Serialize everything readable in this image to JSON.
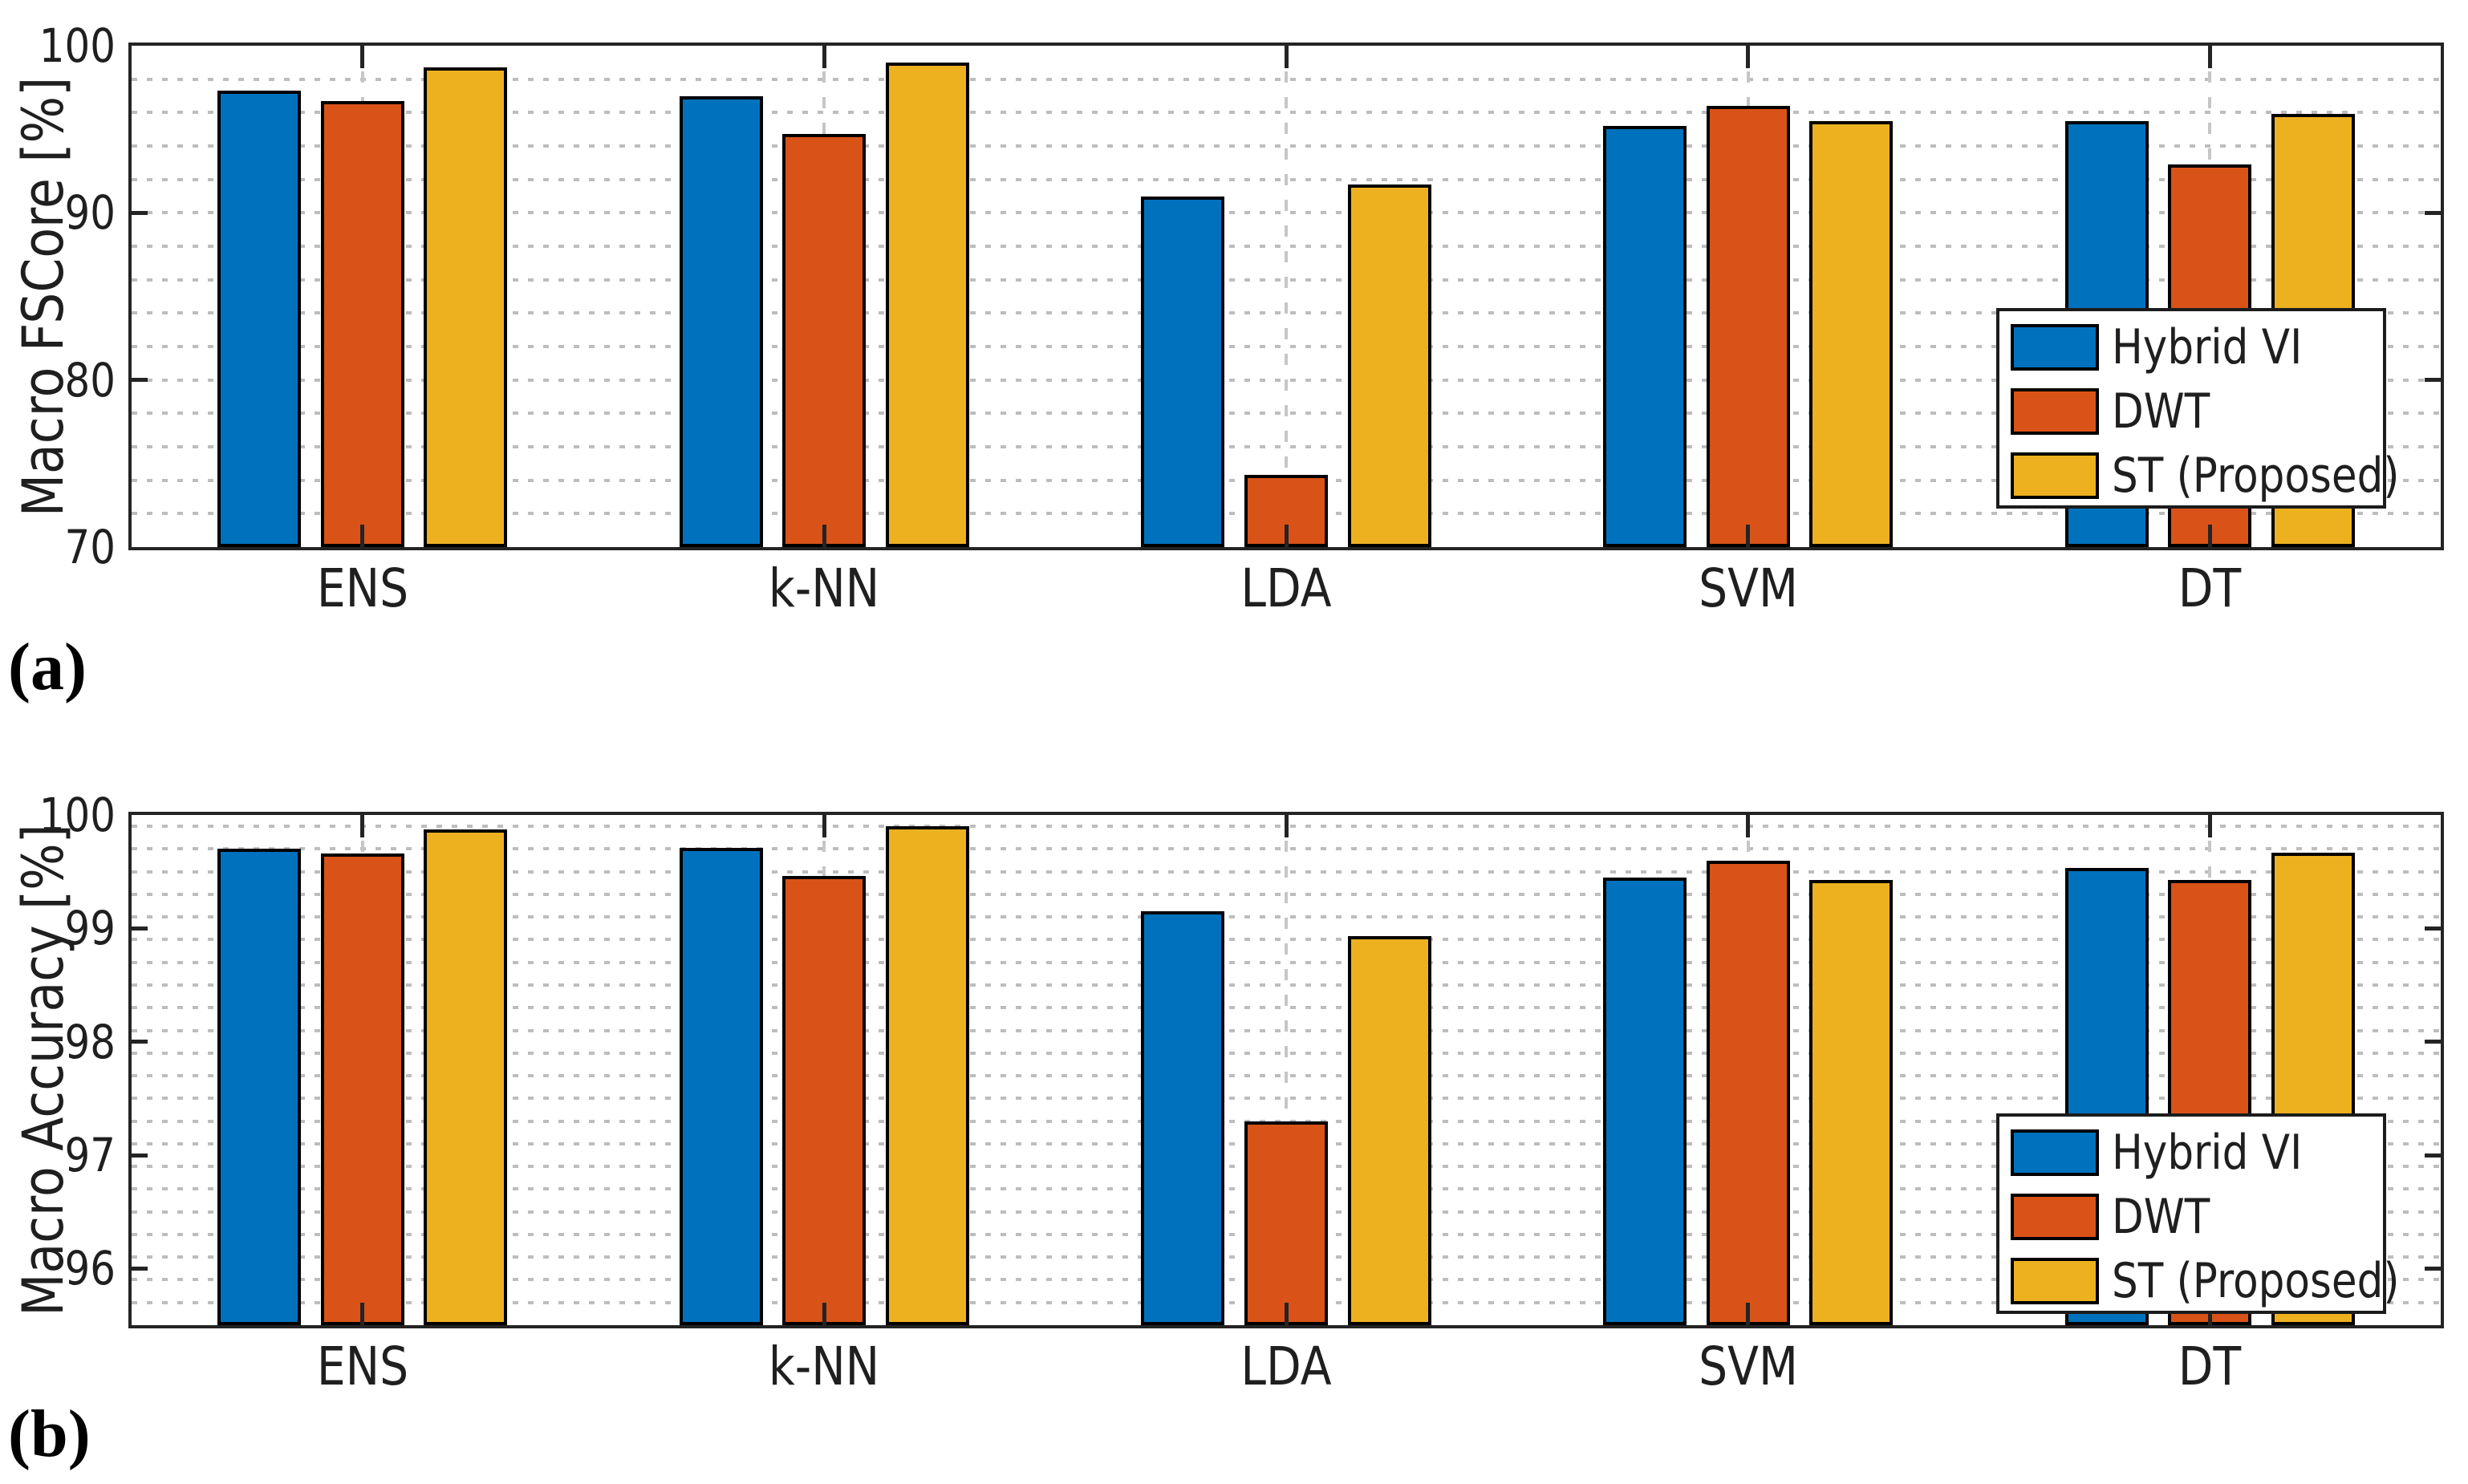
{
  "chart_data": [
    {
      "id": "a",
      "type": "bar",
      "panel_label": "(a)",
      "ylabel": "Macro FSCore [%]",
      "categories": [
        "ENS",
        "k-NN",
        "LDA",
        "SVM",
        "DT"
      ],
      "series": [
        {
          "name": "Hybrid VI",
          "color": "#0072BD",
          "values": [
            97.3,
            97.0,
            91.0,
            95.2,
            95.5
          ]
        },
        {
          "name": "DWT",
          "color": "#D95319",
          "values": [
            96.7,
            94.7,
            74.3,
            96.4,
            92.9
          ]
        },
        {
          "name": "ST (Proposed)",
          "color": "#EDB120",
          "values": [
            98.7,
            99.0,
            91.7,
            95.5,
            95.9
          ]
        }
      ],
      "ylim": [
        70,
        100
      ],
      "yticks": [
        70,
        80,
        90,
        100
      ],
      "minor_step": 2,
      "grid": "minor-dotted-horizontal, dashed-vertical-at-categories",
      "legend_position": "right-middle-inside",
      "legend_entries": [
        "Hybrid VI",
        "DWT",
        "ST (Proposed)"
      ]
    },
    {
      "id": "b",
      "type": "bar",
      "panel_label": "(b)",
      "ylabel": "Macro Accuracy [%]",
      "categories": [
        "ENS",
        "k-NN",
        "LDA",
        "SVM",
        "DT"
      ],
      "series": [
        {
          "name": "Hybrid VI",
          "color": "#0072BD",
          "values": [
            99.7,
            99.71,
            99.15,
            99.45,
            99.53
          ]
        },
        {
          "name": "DWT",
          "color": "#D95319",
          "values": [
            99.66,
            99.46,
            97.3,
            99.6,
            99.43
          ]
        },
        {
          "name": "ST (Proposed)",
          "color": "#EDB120",
          "values": [
            99.87,
            99.9,
            98.93,
            99.43,
            99.67
          ]
        }
      ],
      "ylim": [
        95.5,
        100
      ],
      "yticks": [
        96,
        97,
        98,
        99,
        100
      ],
      "minor_step": 0.2,
      "grid": "minor-dotted-horizontal, dashed-vertical-at-categories",
      "legend_position": "right-middle-inside",
      "legend_entries": [
        "Hybrid VI",
        "DWT",
        "ST (Proposed)"
      ]
    }
  ],
  "colors": {
    "series_blue": "#0072BD",
    "series_orange": "#D95319",
    "series_yellow": "#EDB120",
    "axis": "#242424",
    "grid_dotted": "#bdbdbd",
    "grid_dashed": "#c6c6c6",
    "background": "#ffffff"
  }
}
